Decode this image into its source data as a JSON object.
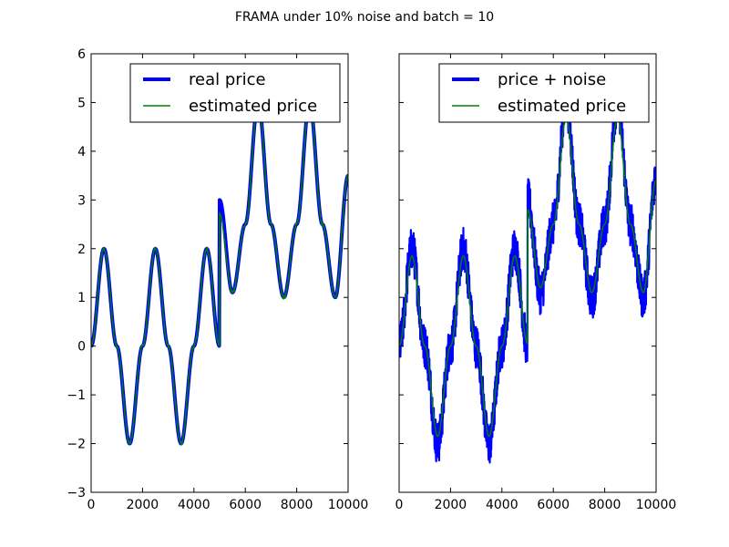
{
  "figure_title": "FRAMA under 10% noise and batch = 10",
  "colors": {
    "real": "#0000ff",
    "noise": "#0000ff",
    "estimated": "#008000",
    "axes": "#000000",
    "background": "#ffffff"
  },
  "chart_data": [
    {
      "type": "line",
      "title": "",
      "xlabel": "",
      "ylabel": "",
      "xlim": [
        0,
        10000
      ],
      "ylim": [
        -3,
        6
      ],
      "xticks": [
        0,
        2000,
        4000,
        6000,
        8000,
        10000
      ],
      "xtick_labels": [
        "0",
        "2000",
        "4000",
        "6000",
        "8000",
        "10000"
      ],
      "yticks": [
        -3,
        -2,
        -1,
        0,
        1,
        2,
        3,
        4,
        5,
        6
      ],
      "ytick_labels": [
        "−3",
        "−2",
        "−1",
        "0",
        "1",
        "2",
        "3",
        "4",
        "5",
        "6"
      ],
      "legend_position": "top-right",
      "series": [
        {
          "name": "real price",
          "style": "thick",
          "x": [
            0,
            500,
            1000,
            1500,
            2000,
            2500,
            3000,
            3500,
            4000,
            4500,
            4999,
            5000,
            5500,
            6000,
            6500,
            7000,
            7500,
            8000,
            8500,
            9000,
            9500,
            10000
          ],
          "y": [
            0,
            2,
            0,
            -2,
            0,
            2,
            0,
            -2,
            0,
            2,
            0,
            3,
            1.1,
            2.5,
            5,
            2.5,
            1,
            2.5,
            5,
            2.5,
            1,
            3.5
          ]
        },
        {
          "name": "estimated price",
          "style": "thin",
          "x": [
            0,
            500,
            1000,
            1500,
            2000,
            2500,
            3000,
            3500,
            4000,
            4500,
            4999,
            5000,
            5500,
            6000,
            6500,
            7000,
            7500,
            8000,
            8500,
            9000,
            9500,
            10000
          ],
          "y": [
            0,
            2,
            0,
            -2,
            0,
            2,
            0,
            -2,
            0,
            2,
            0,
            2.7,
            1.1,
            2.5,
            5,
            2.5,
            1,
            2.5,
            5,
            2.5,
            1,
            3.5
          ]
        }
      ]
    },
    {
      "type": "line",
      "title": "",
      "xlabel": "",
      "ylabel": "",
      "xlim": [
        0,
        10000
      ],
      "ylim": [
        -3,
        6
      ],
      "xticks": [
        0,
        2000,
        4000,
        6000,
        8000,
        10000
      ],
      "xtick_labels": [
        "0",
        "2000",
        "4000",
        "6000",
        "8000",
        "10000"
      ],
      "yticks": [
        -3,
        -2,
        -1,
        0,
        1,
        2,
        3,
        4,
        5,
        6
      ],
      "ytick_labels": [],
      "legend_position": "top-right",
      "series": [
        {
          "name": "price + noise",
          "style": "noisy",
          "noise_amplitude": 0.45,
          "x": [
            0,
            500,
            1000,
            1500,
            2000,
            2500,
            3000,
            3500,
            4000,
            4500,
            4999,
            5000,
            5500,
            6000,
            6500,
            7000,
            7500,
            8000,
            8500,
            9000,
            9500,
            10000
          ],
          "y": [
            0,
            2,
            0,
            -2,
            0,
            2,
            0,
            -2,
            0,
            2,
            0,
            3,
            1.1,
            2.5,
            5,
            2.5,
            1,
            2.5,
            5,
            2.5,
            1,
            3.5
          ]
        },
        {
          "name": "estimated price",
          "style": "thin",
          "x": [
            0,
            500,
            1000,
            1500,
            2000,
            2500,
            3000,
            3500,
            4000,
            4500,
            4999,
            5000,
            5500,
            6000,
            6500,
            7000,
            7500,
            8000,
            8500,
            9000,
            9500,
            10000
          ],
          "y": [
            0,
            1.85,
            0,
            -1.85,
            0,
            1.85,
            0,
            -1.85,
            0,
            1.85,
            0.05,
            2.8,
            1.2,
            2.5,
            4.7,
            2.5,
            1.1,
            2.5,
            4.7,
            2.5,
            1.1,
            3.4
          ]
        }
      ]
    }
  ]
}
